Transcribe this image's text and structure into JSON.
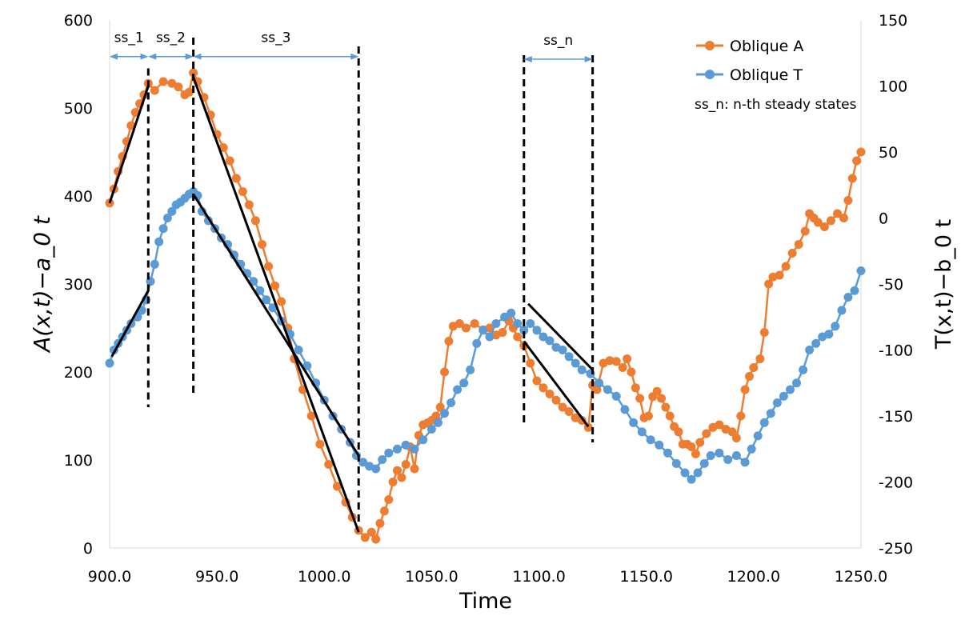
{
  "chart_data": {
    "type": "line",
    "xlabel": "Time",
    "ylabel_left": "A(x,t)−a_0 t",
    "ylabel_right": "T(x,t)−b_0 t",
    "xlim": [
      900,
      1250
    ],
    "ylim_left": [
      0,
      600
    ],
    "ylim_right": [
      -250,
      150
    ],
    "x_ticks": [
      "900.0",
      "950.0",
      "1000.0",
      "1050.0",
      "1100.0",
      "1150.0",
      "1200.0",
      "1250.0"
    ],
    "y_ticks_left": [
      "0",
      "100",
      "200",
      "300",
      "400",
      "500",
      "600"
    ],
    "y_ticks_right": [
      "-250",
      "-200",
      "-150",
      "-100",
      "-50",
      "0",
      "50",
      "100",
      "150"
    ],
    "legend": {
      "position": "top-right",
      "entries": [
        "Oblique A",
        "Oblique T"
      ],
      "note": "ss_n: n-th steady states"
    },
    "colors": {
      "A": "#ED7D31",
      "T": "#5B9BD5",
      "fit": "#000000",
      "arrow": "#5B9BD5"
    },
    "series": [
      {
        "name": "Oblique A",
        "axis": "left",
        "points": [
          [
            900,
            392
          ],
          [
            902,
            408
          ],
          [
            904,
            428
          ],
          [
            906,
            445
          ],
          [
            908,
            462
          ],
          [
            910,
            480
          ],
          [
            912,
            495
          ],
          [
            914,
            505
          ],
          [
            916,
            515
          ],
          [
            918,
            528
          ],
          [
            921,
            520
          ],
          [
            925,
            530
          ],
          [
            929,
            528
          ],
          [
            932,
            524
          ],
          [
            935,
            515
          ],
          [
            937,
            518
          ],
          [
            939,
            540
          ],
          [
            941,
            530
          ],
          [
            944,
            512
          ],
          [
            947,
            492
          ],
          [
            950,
            470
          ],
          [
            953,
            455
          ],
          [
            956,
            440
          ],
          [
            959,
            420
          ],
          [
            962,
            405
          ],
          [
            965,
            390
          ],
          [
            968,
            372
          ],
          [
            971,
            345
          ],
          [
            974,
            320
          ],
          [
            977,
            298
          ],
          [
            980,
            280
          ],
          [
            983,
            250
          ],
          [
            986,
            215
          ],
          [
            990,
            180
          ],
          [
            994,
            150
          ],
          [
            998,
            118
          ],
          [
            1002,
            95
          ],
          [
            1006,
            70
          ],
          [
            1010,
            52
          ],
          [
            1013,
            35
          ],
          [
            1016,
            20
          ],
          [
            1019,
            12
          ],
          [
            1022,
            18
          ],
          [
            1024,
            10
          ],
          [
            1026,
            28
          ],
          [
            1028,
            42
          ],
          [
            1030,
            55
          ],
          [
            1032,
            75
          ],
          [
            1034,
            88
          ],
          [
            1036,
            80
          ],
          [
            1038,
            95
          ],
          [
            1040,
            115
          ],
          [
            1042,
            90
          ],
          [
            1044,
            128
          ],
          [
            1046,
            140
          ],
          [
            1048,
            142
          ],
          [
            1050,
            145
          ],
          [
            1052,
            150
          ],
          [
            1054,
            160
          ],
          [
            1056,
            200
          ],
          [
            1058,
            235
          ],
          [
            1060,
            252
          ],
          [
            1063,
            255
          ],
          [
            1066,
            250
          ],
          [
            1070,
            255
          ],
          [
            1074,
            248
          ],
          [
            1077,
            250
          ],
          [
            1080,
            242
          ],
          [
            1083,
            245
          ],
          [
            1086,
            258
          ],
          [
            1088,
            250
          ],
          [
            1090,
            240
          ],
          [
            1093,
            230
          ],
          [
            1096,
            210
          ],
          [
            1099,
            190
          ],
          [
            1102,
            182
          ],
          [
            1105,
            175
          ],
          [
            1108,
            168
          ],
          [
            1111,
            160
          ],
          [
            1114,
            155
          ],
          [
            1117,
            148
          ],
          [
            1120,
            145
          ],
          [
            1123,
            137
          ],
          [
            1125,
            185
          ],
          [
            1127,
            180
          ],
          [
            1130,
            210
          ],
          [
            1133,
            213
          ],
          [
            1136,
            212
          ],
          [
            1139,
            205
          ],
          [
            1141,
            215
          ],
          [
            1143,
            200
          ],
          [
            1145,
            182
          ],
          [
            1147,
            170
          ],
          [
            1149,
            148
          ],
          [
            1151,
            150
          ],
          [
            1153,
            172
          ],
          [
            1155,
            178
          ],
          [
            1157,
            170
          ],
          [
            1159,
            160
          ],
          [
            1161,
            150
          ],
          [
            1163,
            138
          ],
          [
            1165,
            132
          ],
          [
            1167,
            118
          ],
          [
            1169,
            118
          ],
          [
            1171,
            115
          ],
          [
            1173,
            107
          ],
          [
            1175,
            120
          ],
          [
            1178,
            130
          ],
          [
            1181,
            137
          ],
          [
            1184,
            140
          ],
          [
            1187,
            135
          ],
          [
            1190,
            132
          ],
          [
            1192,
            125
          ],
          [
            1194,
            150
          ],
          [
            1196,
            180
          ],
          [
            1198,
            195
          ],
          [
            1200,
            205
          ],
          [
            1203,
            215
          ],
          [
            1205,
            245
          ],
          [
            1207,
            300
          ],
          [
            1209,
            308
          ],
          [
            1212,
            310
          ],
          [
            1215,
            320
          ],
          [
            1218,
            335
          ],
          [
            1221,
            345
          ],
          [
            1224,
            360
          ],
          [
            1226,
            380
          ],
          [
            1228,
            375
          ],
          [
            1230,
            370
          ],
          [
            1233,
            365
          ],
          [
            1236,
            372
          ],
          [
            1239,
            380
          ],
          [
            1242,
            375
          ],
          [
            1244,
            395
          ],
          [
            1246,
            420
          ],
          [
            1248,
            440
          ],
          [
            1250,
            450
          ]
        ]
      },
      {
        "name": "Oblique T",
        "axis": "right",
        "points": [
          [
            900,
            -110
          ],
          [
            902,
            -100
          ],
          [
            904,
            -95
          ],
          [
            906,
            -90
          ],
          [
            908,
            -85
          ],
          [
            910,
            -80
          ],
          [
            913,
            -75
          ],
          [
            915,
            -70
          ],
          [
            917,
            -62
          ],
          [
            919,
            -48
          ],
          [
            921,
            -35
          ],
          [
            923,
            -18
          ],
          [
            925,
            -8
          ],
          [
            927,
            0
          ],
          [
            929,
            5
          ],
          [
            931,
            10
          ],
          [
            933,
            12
          ],
          [
            935,
            15
          ],
          [
            937,
            18
          ],
          [
            939,
            20
          ],
          [
            941,
            17
          ],
          [
            943,
            5
          ],
          [
            946,
            -2
          ],
          [
            949,
            -8
          ],
          [
            952,
            -15
          ],
          [
            955,
            -20
          ],
          [
            958,
            -28
          ],
          [
            961,
            -35
          ],
          [
            964,
            -42
          ],
          [
            967,
            -48
          ],
          [
            970,
            -55
          ],
          [
            973,
            -62
          ],
          [
            976,
            -68
          ],
          [
            980,
            -78
          ],
          [
            984,
            -88
          ],
          [
            988,
            -100
          ],
          [
            992,
            -112
          ],
          [
            996,
            -125
          ],
          [
            1000,
            -138
          ],
          [
            1004,
            -150
          ],
          [
            1008,
            -160
          ],
          [
            1012,
            -170
          ],
          [
            1015,
            -180
          ],
          [
            1018,
            -185
          ],
          [
            1021,
            -188
          ],
          [
            1024,
            -190
          ],
          [
            1027,
            -183
          ],
          [
            1030,
            -178
          ],
          [
            1034,
            -175
          ],
          [
            1038,
            -172
          ],
          [
            1042,
            -175
          ],
          [
            1046,
            -168
          ],
          [
            1050,
            -160
          ],
          [
            1053,
            -155
          ],
          [
            1056,
            -148
          ],
          [
            1059,
            -140
          ],
          [
            1062,
            -130
          ],
          [
            1065,
            -125
          ],
          [
            1068,
            -115
          ],
          [
            1071,
            -95
          ],
          [
            1074,
            -85
          ],
          [
            1077,
            -90
          ],
          [
            1080,
            -80
          ],
          [
            1084,
            -75
          ],
          [
            1087,
            -72
          ],
          [
            1090,
            -80
          ],
          [
            1093,
            -85
          ],
          [
            1096,
            -80
          ],
          [
            1099,
            -85
          ],
          [
            1102,
            -90
          ],
          [
            1105,
            -93
          ],
          [
            1108,
            -98
          ],
          [
            1111,
            -100
          ],
          [
            1114,
            -105
          ],
          [
            1117,
            -110
          ],
          [
            1120,
            -115
          ],
          [
            1124,
            -118
          ],
          [
            1128,
            -125
          ],
          [
            1132,
            -130
          ],
          [
            1136,
            -135
          ],
          [
            1140,
            -145
          ],
          [
            1144,
            -155
          ],
          [
            1148,
            -162
          ],
          [
            1152,
            -168
          ],
          [
            1156,
            -172
          ],
          [
            1160,
            -178
          ],
          [
            1164,
            -186
          ],
          [
            1168,
            -193
          ],
          [
            1171,
            -198
          ],
          [
            1174,
            -193
          ],
          [
            1177,
            -186
          ],
          [
            1180,
            -180
          ],
          [
            1184,
            -178
          ],
          [
            1188,
            -183
          ],
          [
            1192,
            -180
          ],
          [
            1196,
            -185
          ],
          [
            1199,
            -175
          ],
          [
            1202,
            -165
          ],
          [
            1205,
            -155
          ],
          [
            1208,
            -148
          ],
          [
            1211,
            -140
          ],
          [
            1214,
            -135
          ],
          [
            1217,
            -130
          ],
          [
            1220,
            -125
          ],
          [
            1223,
            -115
          ],
          [
            1226,
            -100
          ],
          [
            1229,
            -95
          ],
          [
            1232,
            -90
          ],
          [
            1235,
            -88
          ],
          [
            1238,
            -82
          ],
          [
            1241,
            -70
          ],
          [
            1244,
            -60
          ],
          [
            1247,
            -55
          ],
          [
            1250,
            -40
          ]
        ]
      }
    ],
    "fit_lines": [
      {
        "axis": "left",
        "name": "ss_1 fit",
        "from": [
          900,
          392
        ],
        "to": [
          918,
          525
        ]
      },
      {
        "axis": "left",
        "name": "ss_3 fit A",
        "from": [
          939,
          535
        ],
        "to": [
          1016,
          18
        ]
      },
      {
        "axis": "left",
        "name": "ss_n fit A",
        "from": [
          1093,
          235
        ],
        "to": [
          1123,
          138
        ]
      },
      {
        "axis": "right",
        "name": "ss_1 fit T",
        "from": [
          901,
          -105
        ],
        "to": [
          918,
          -55
        ]
      },
      {
        "axis": "right",
        "name": "ss_3 fit T",
        "from": [
          939,
          18
        ],
        "to": [
          1016,
          -180
        ]
      },
      {
        "axis": "right",
        "name": "ss_n fit T",
        "from": [
          1095,
          -65
        ],
        "to": [
          1125,
          -115
        ]
      }
    ],
    "steady_state_boundaries": [
      {
        "x": 918,
        "y_from": 545,
        "y_to": 160
      },
      {
        "x": 939,
        "y_from": 580,
        "y_to": 175
      },
      {
        "x": 1016,
        "y_from": 570,
        "y_to": 30
      },
      {
        "x": 1093,
        "y_from": 560,
        "y_to": 140
      },
      {
        "x": 1125,
        "y_from": 560,
        "y_to": 120
      }
    ],
    "steady_state_spans": [
      {
        "label": "ss_1",
        "from": 900,
        "to": 918,
        "y": 563
      },
      {
        "label": "ss_2",
        "from": 918,
        "to": 939,
        "y": 563
      },
      {
        "label": "ss_3",
        "from": 939,
        "to": 1016,
        "y": 563
      },
      {
        "label": "ss_n",
        "from": 1093,
        "to": 1125,
        "y": 560
      }
    ]
  }
}
